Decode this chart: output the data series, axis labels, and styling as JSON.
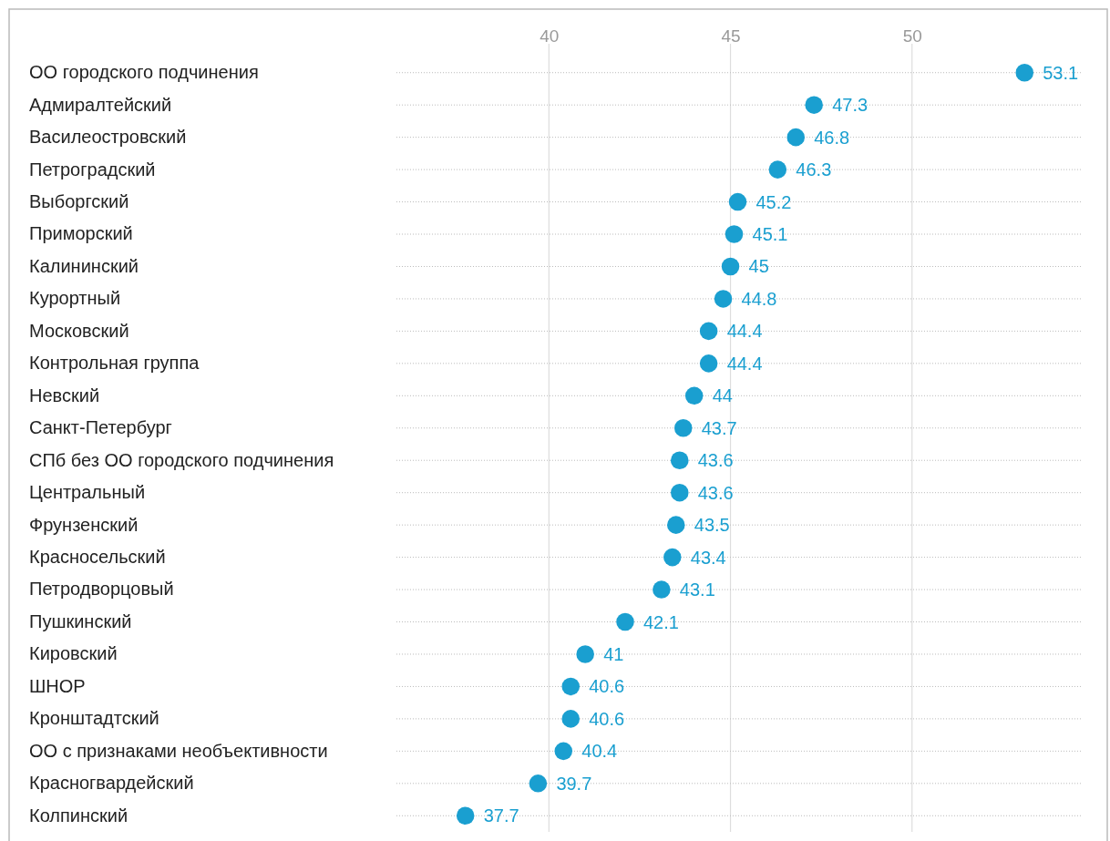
{
  "chart_data": {
    "type": "scatter",
    "orientation": "horizontal",
    "categories": [
      "ОО городского подчинения",
      "Адмиралтейский",
      "Василеостровский",
      "Петроградский",
      "Выборгский",
      "Приморский",
      "Калининский",
      "Курортный",
      "Московский",
      "Контрольная группа",
      "Невский",
      "Санкт-Петербург",
      "СПб без ОО городского подчинения",
      "Центральный",
      "Фрунзенский",
      "Красносельский",
      "Петродворцовый",
      "Пушкинский",
      "Кировский",
      "ШНОР",
      "Кронштадтский",
      "ОО с признаками необъективности",
      "Красногвардейский",
      "Колпинский"
    ],
    "values": [
      53.1,
      47.3,
      46.8,
      46.3,
      45.2,
      45.1,
      45,
      44.8,
      44.4,
      44.4,
      44,
      43.7,
      43.6,
      43.6,
      43.5,
      43.4,
      43.1,
      42.1,
      41,
      40.6,
      40.6,
      40.4,
      39.7,
      37.7
    ],
    "color": "#1a9fd0",
    "xlim": [
      35.8,
      54.7
    ],
    "xticks": [
      40,
      45,
      50
    ],
    "grid": true,
    "data_labels": true,
    "marker": "circle"
  }
}
